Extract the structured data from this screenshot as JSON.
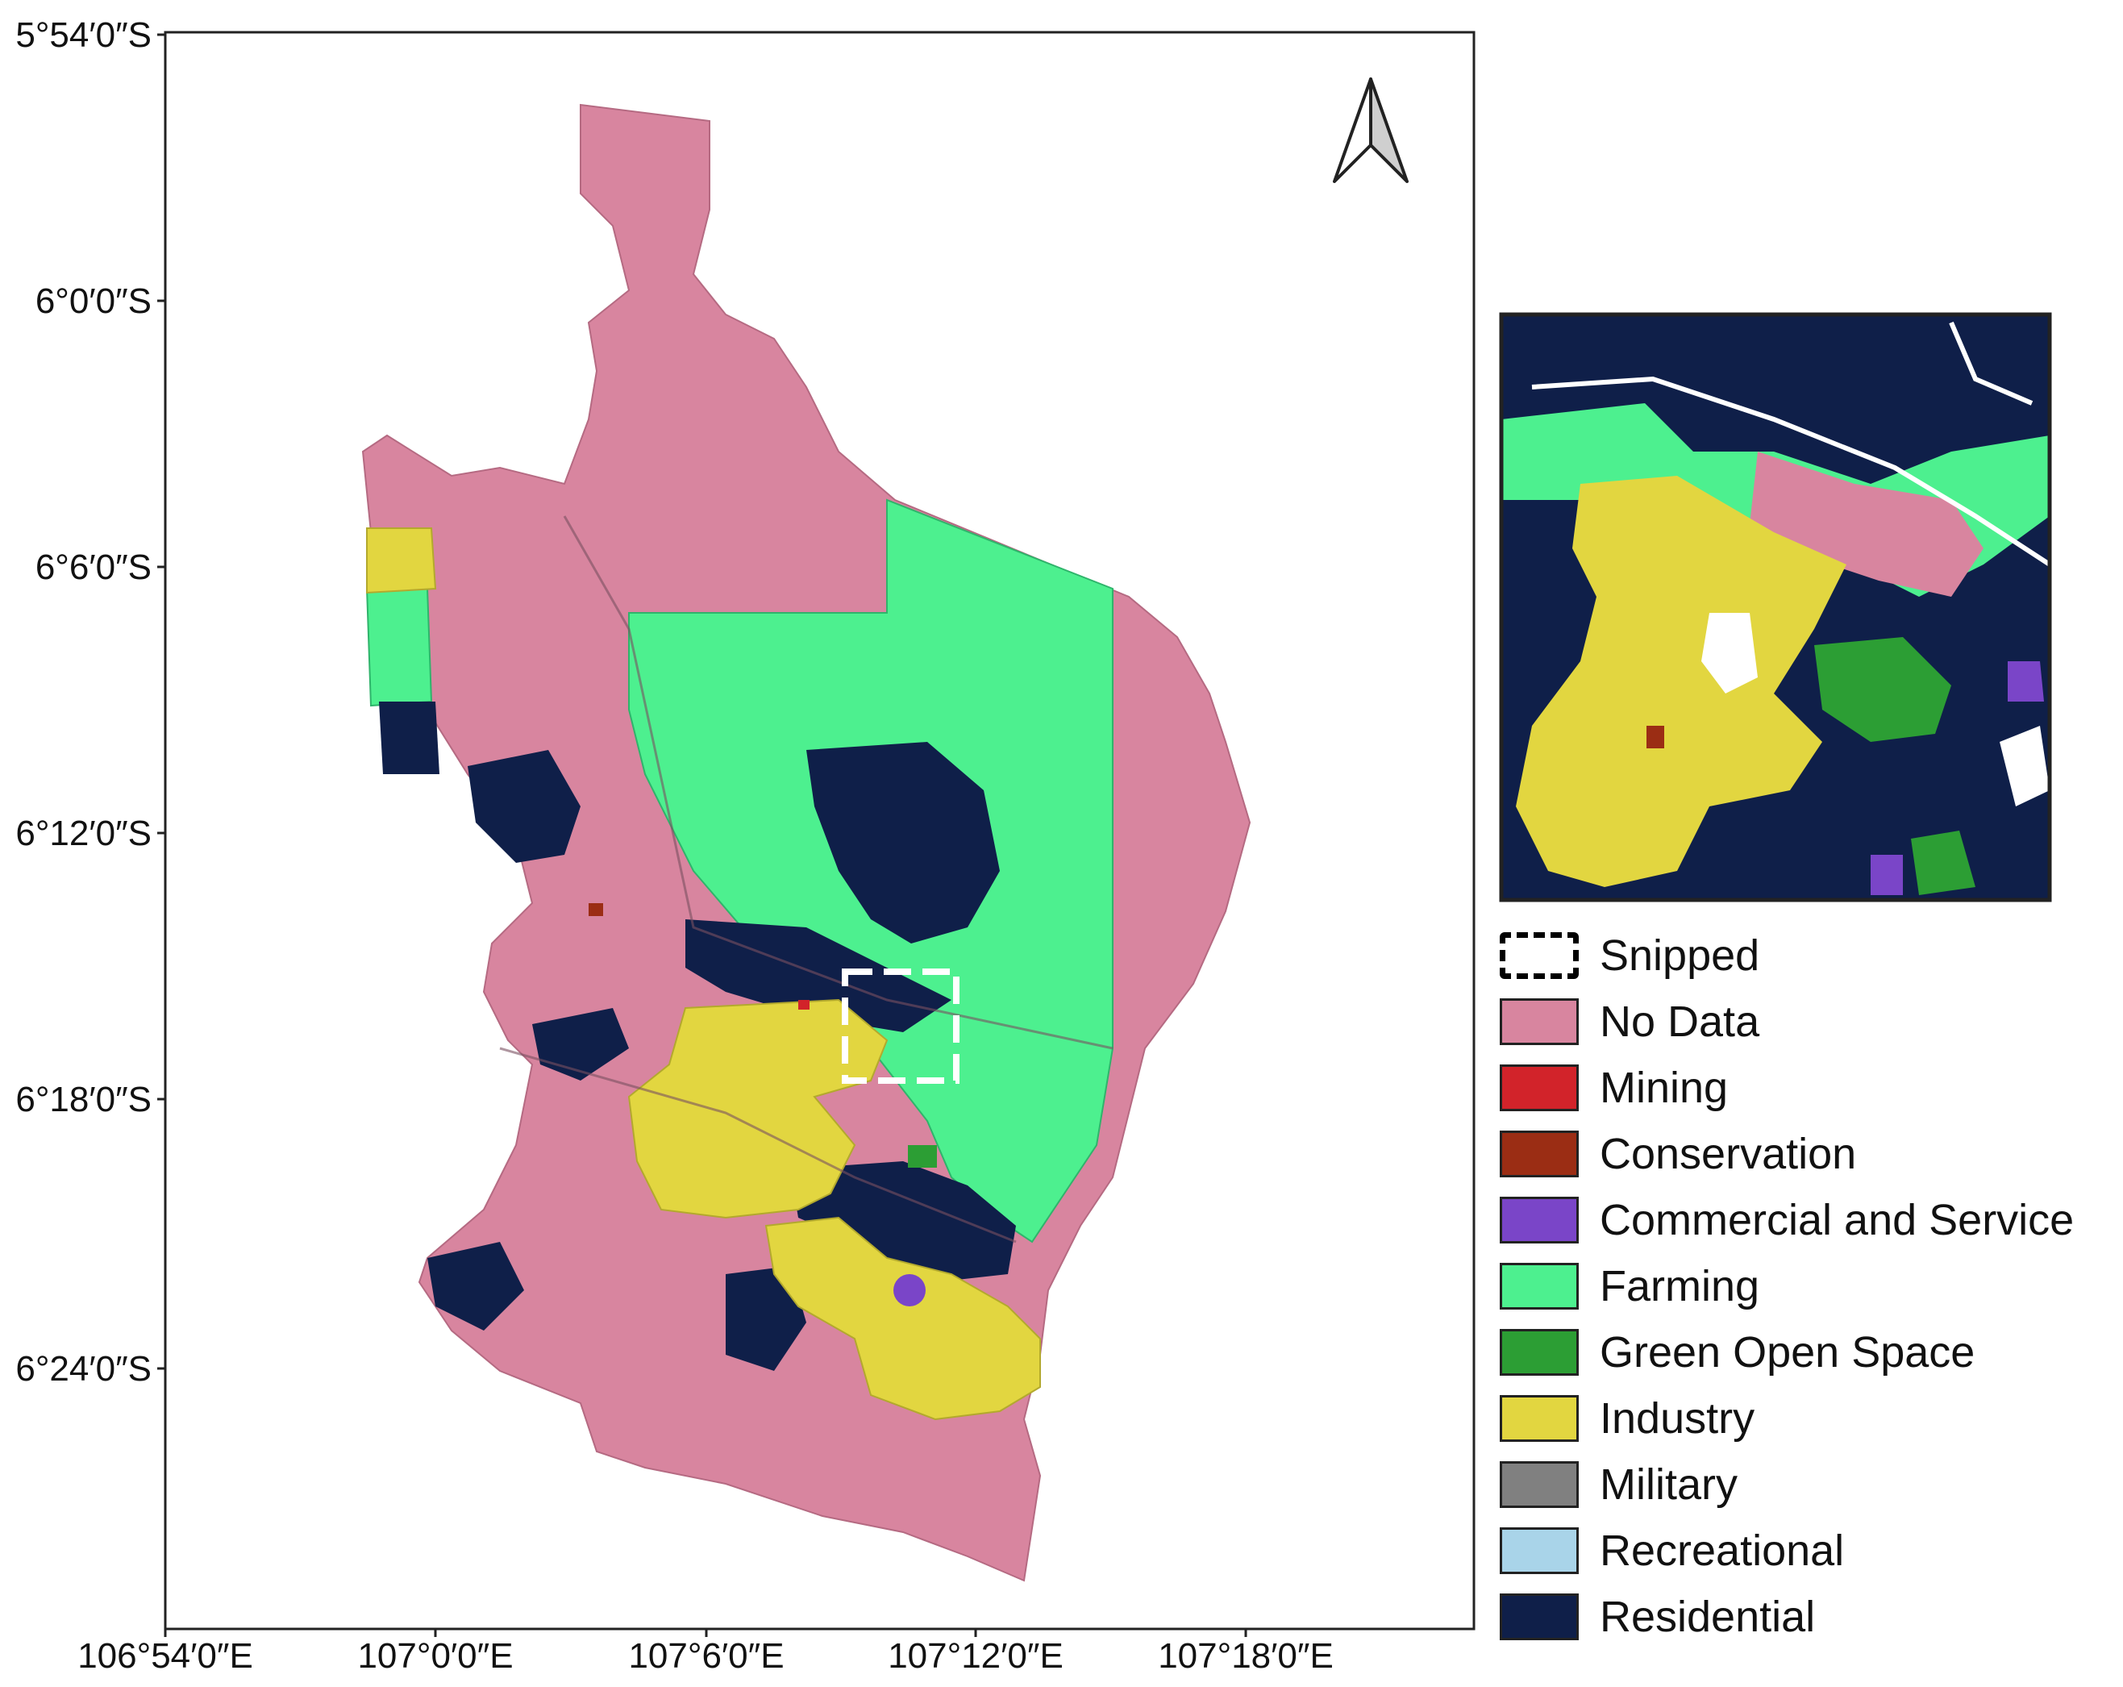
{
  "map": {
    "lat_labels": [
      "5°54′0″S",
      "6°0′0″S",
      "6°6′0″S",
      "6°12′0″S",
      "6°18′0″S",
      "6°24′0″S"
    ],
    "lon_labels": [
      "106°54′0″E",
      "107°0′0″E",
      "107°6′0″E",
      "107°12′0″E",
      "107°18′0″E"
    ],
    "north_arrow_icon": "north-arrow-icon"
  },
  "legend": {
    "items": [
      {
        "label": "Snipped",
        "type": "dashed-frame"
      },
      {
        "label": "No Data",
        "color": "#d8859f"
      },
      {
        "label": "Mining",
        "color": "#d2232a"
      },
      {
        "label": "Conservation",
        "color": "#9b2d14"
      },
      {
        "label": "Commercial and Service",
        "color": "#7a45c8"
      },
      {
        "label": "Farming",
        "color": "#4df08f"
      },
      {
        "label": "Green Open Space",
        "color": "#2c9e34"
      },
      {
        "label": "Industry",
        "color": "#e2d640"
      },
      {
        "label": "Military",
        "color": "#808080"
      },
      {
        "label": "Recreational",
        "color": "#a9d4e9"
      },
      {
        "label": "Residential",
        "color": "#0f1f49"
      }
    ]
  }
}
